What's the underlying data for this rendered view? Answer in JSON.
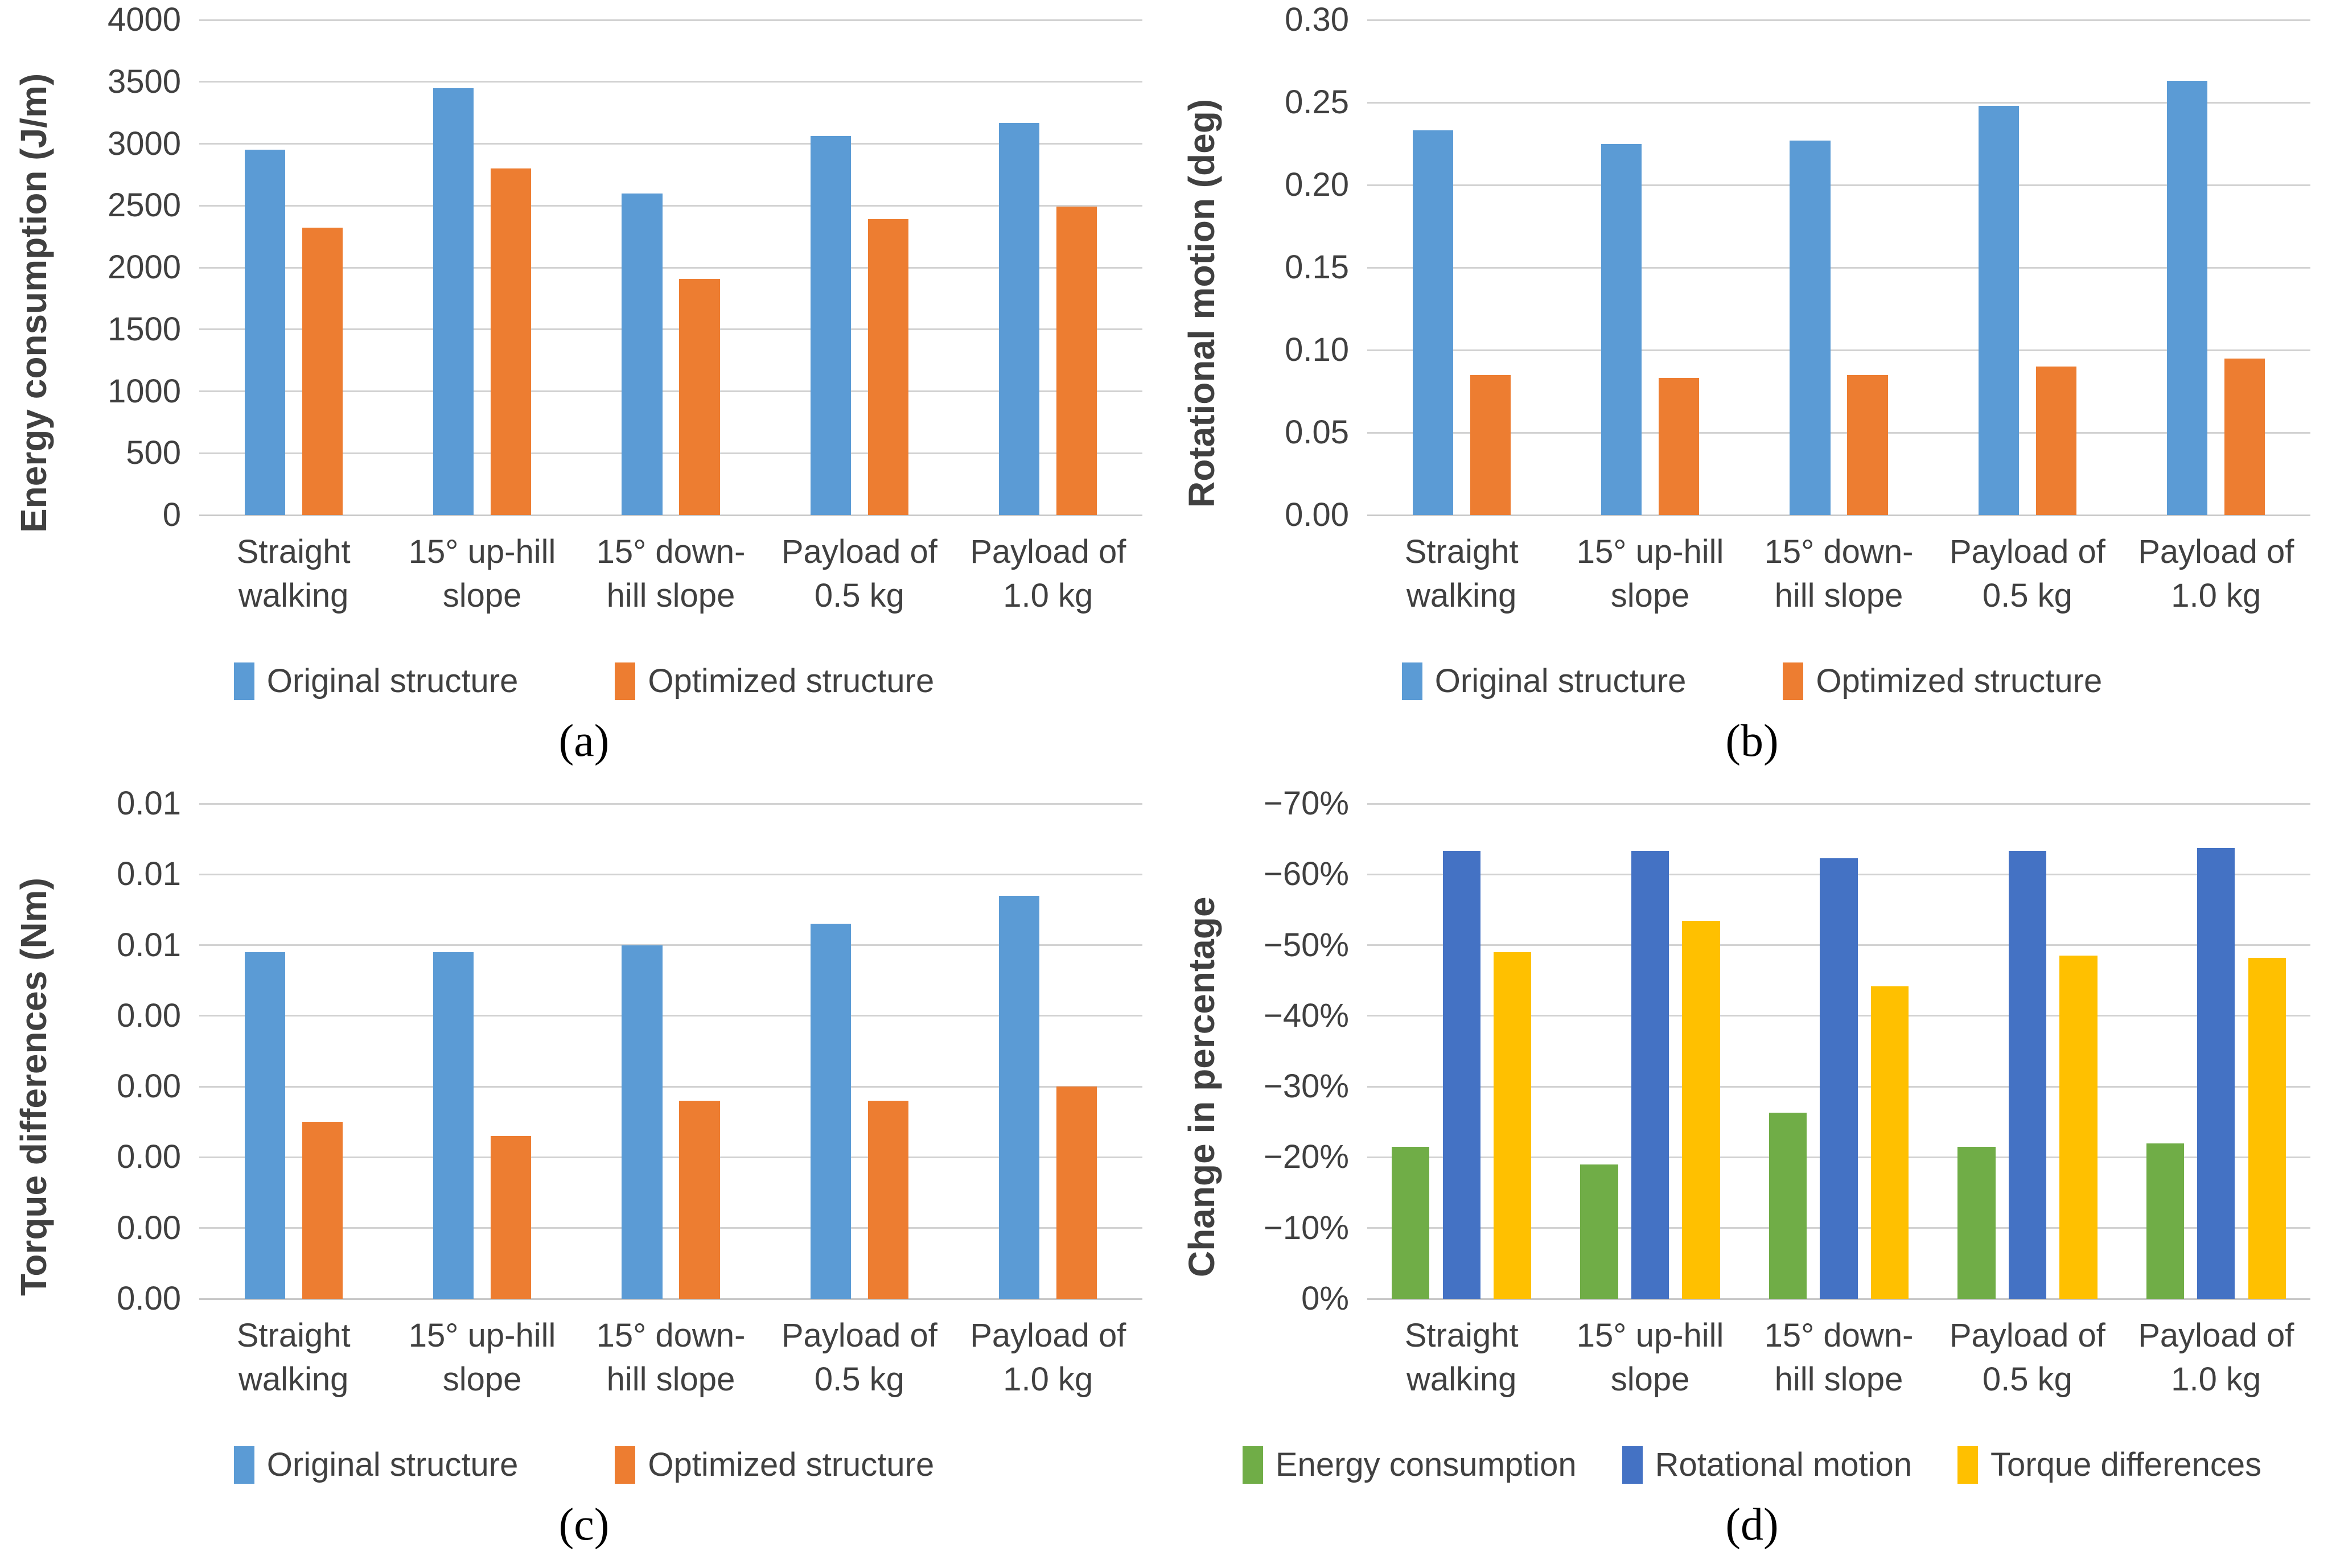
{
  "figure_title": "",
  "colors": {
    "original_structure": "#5B9BD5",
    "optimized_structure": "#ED7D31",
    "energy_consumption": "#70AD47",
    "rotational_motion": "#4472C4",
    "torque_differences": "#FFC000",
    "gridline": "#D2D2D2",
    "axis_line": "#C8C8C8",
    "text": "#404040",
    "caption_text": "#000000"
  },
  "chart_data": [
    {
      "panel": "a",
      "type": "bar",
      "caption": "(a)",
      "ylabel": "Energy consumption (J/m)",
      "ylim": [
        0,
        4000
      ],
      "grid": true,
      "legend_position": "bottom",
      "yticks": [
        {
          "value": 4000,
          "label": "4000"
        },
        {
          "value": 3500,
          "label": "3500"
        },
        {
          "value": 3000,
          "label": "3000"
        },
        {
          "value": 2500,
          "label": "2500"
        },
        {
          "value": 2000,
          "label": "2000"
        },
        {
          "value": 1500,
          "label": "1500"
        },
        {
          "value": 1000,
          "label": "1000"
        },
        {
          "value": 500,
          "label": "500"
        },
        {
          "value": 0,
          "label": "0"
        }
      ],
      "categories": [
        "Straight\nwalking",
        "15° up-hill\nslope",
        "15° down-\nhill slope",
        "Payload of\n0.5 kg",
        "Payload of\n1.0 kg"
      ],
      "series": [
        {
          "name": "Original structure",
          "color_key": "original_structure",
          "values": [
            2950,
            3450,
            2600,
            3060,
            3170
          ]
        },
        {
          "name": "Optimized structure",
          "color_key": "optimized_structure",
          "values": [
            2320,
            2800,
            1910,
            2390,
            2490
          ]
        }
      ]
    },
    {
      "panel": "b",
      "type": "bar",
      "caption": "(b)",
      "ylabel": "Rotational motion (deg)",
      "ylim": [
        0,
        0.3
      ],
      "grid": true,
      "legend_position": "bottom",
      "yticks": [
        {
          "value": 0.3,
          "label": "0.30"
        },
        {
          "value": 0.25,
          "label": "0.25"
        },
        {
          "value": 0.2,
          "label": "0.20"
        },
        {
          "value": 0.15,
          "label": "0.15"
        },
        {
          "value": 0.1,
          "label": "0.10"
        },
        {
          "value": 0.05,
          "label": "0.05"
        },
        {
          "value": 0.0,
          "label": "0.00"
        }
      ],
      "categories": [
        "Straight\nwalking",
        "15° up-hill\nslope",
        "15° down-\nhill slope",
        "Payload of\n0.5 kg",
        "Payload of\n1.0 kg"
      ],
      "series": [
        {
          "name": "Original structure",
          "color_key": "original_structure",
          "values": [
            0.233,
            0.225,
            0.227,
            0.248,
            0.263
          ]
        },
        {
          "name": "Optimized structure",
          "color_key": "optimized_structure",
          "values": [
            0.085,
            0.083,
            0.085,
            0.09,
            0.095
          ]
        }
      ]
    },
    {
      "panel": "c",
      "type": "bar",
      "caption": "(c)",
      "ylabel": "Torque differences (Nm)",
      "ylim": [
        0,
        0.007
      ],
      "grid": true,
      "legend_position": "bottom",
      "yticks": [
        {
          "value": 0.007,
          "label": "0.01"
        },
        {
          "value": 0.006,
          "label": "0.01"
        },
        {
          "value": 0.005,
          "label": "0.01"
        },
        {
          "value": 0.004,
          "label": "0.00"
        },
        {
          "value": 0.003,
          "label": "0.00"
        },
        {
          "value": 0.002,
          "label": "0.00"
        },
        {
          "value": 0.001,
          "label": "0.00"
        },
        {
          "value": 0.0,
          "label": "0.00"
        }
      ],
      "categories": [
        "Straight\nwalking",
        "15° up-hill\nslope",
        "15° down-\nhill slope",
        "Payload of\n0.5 kg",
        "Payload of\n1.0 kg"
      ],
      "series": [
        {
          "name": "Original structure",
          "color_key": "original_structure",
          "values": [
            0.0049,
            0.0049,
            0.005,
            0.0053,
            0.0057
          ]
        },
        {
          "name": "Optimized structure",
          "color_key": "optimized_structure",
          "values": [
            0.0025,
            0.0023,
            0.0028,
            0.0028,
            0.003
          ]
        }
      ]
    },
    {
      "panel": "d",
      "type": "bar",
      "caption": "(d)",
      "ylabel": "Change in percentage",
      "ylim": [
        0,
        -70
      ],
      "grid": true,
      "legend_position": "bottom",
      "yticks": [
        {
          "value": -70,
          "label": "−70%"
        },
        {
          "value": -60,
          "label": "−60%"
        },
        {
          "value": -50,
          "label": "−50%"
        },
        {
          "value": -40,
          "label": "−40%"
        },
        {
          "value": -30,
          "label": "−30%"
        },
        {
          "value": -20,
          "label": "−20%"
        },
        {
          "value": -10,
          "label": "−10%"
        },
        {
          "value": 0,
          "label": "0%"
        }
      ],
      "categories": [
        "Straight\nwalking",
        "15° up-hill\nslope",
        "15° down-\nhill slope",
        "Payload of\n0.5 kg",
        "Payload of\n1.0 kg"
      ],
      "series": [
        {
          "name": "Energy consumption",
          "color_key": "energy_consumption",
          "values": [
            -21.5,
            -19.0,
            -26.3,
            -21.5,
            -22.0
          ]
        },
        {
          "name": "Rotational motion",
          "color_key": "rotational_motion",
          "values": [
            -63.3,
            -63.3,
            -62.3,
            -63.3,
            -63.7
          ]
        },
        {
          "name": "Torque differences",
          "color_key": "torque_differences",
          "values": [
            -49.0,
            -53.4,
            -44.2,
            -48.5,
            -48.2
          ]
        }
      ]
    }
  ]
}
